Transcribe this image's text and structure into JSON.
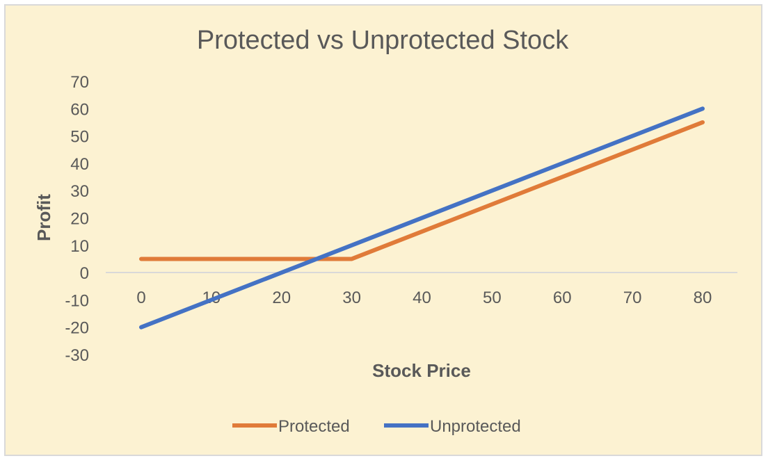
{
  "chart_data": {
    "type": "line",
    "title": "Protected vs Unprotected Stock",
    "xlabel": "Stock Price",
    "ylabel": "Profit",
    "x": [
      0,
      10,
      20,
      30,
      40,
      50,
      60,
      70,
      80
    ],
    "xticks": [
      "0",
      "10",
      "20",
      "30",
      "40",
      "50",
      "60",
      "70",
      "80"
    ],
    "yticks": [
      "70",
      "60",
      "50",
      "40",
      "30",
      "20",
      "10",
      "0",
      "-10",
      "-20",
      "-30"
    ],
    "ylim": [
      -30,
      70
    ],
    "xlim": [
      0,
      80
    ],
    "grid": false,
    "legend_position": "bottom",
    "series": [
      {
        "name": "Protected",
        "color": "#E07B39",
        "points": [
          [
            0,
            5
          ],
          [
            30,
            5
          ],
          [
            80,
            55
          ]
        ]
      },
      {
        "name": "Unprotected",
        "color": "#4472C4",
        "points": [
          [
            0,
            -20
          ],
          [
            80,
            60
          ]
        ]
      }
    ]
  }
}
